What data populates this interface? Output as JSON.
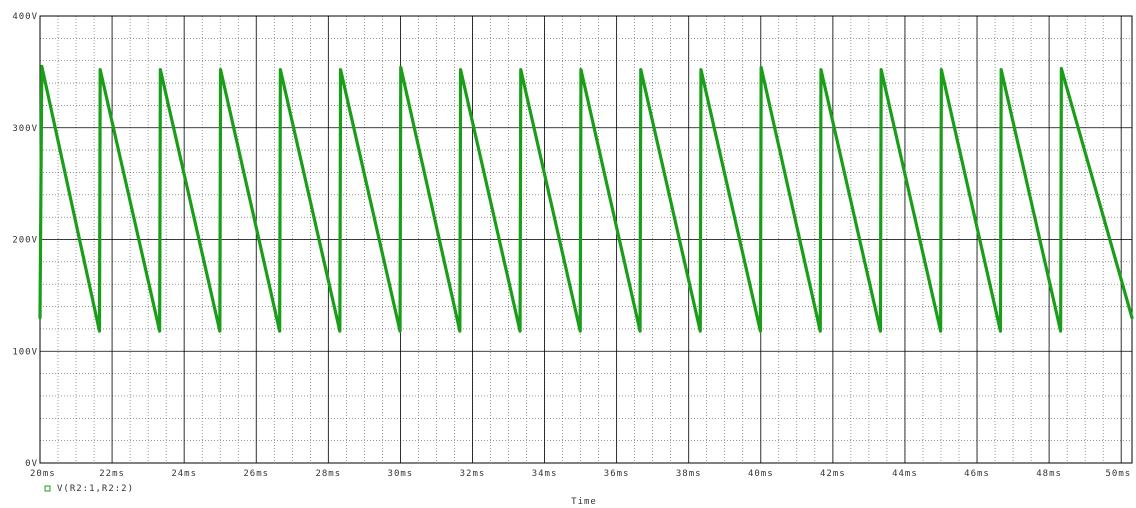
{
  "chart_data": {
    "type": "line",
    "title": "",
    "xlabel": "Time",
    "ylabel": "",
    "xlim": [
      20,
      50.3
    ],
    "ylim": [
      0,
      400
    ],
    "x_unit": "ms",
    "y_unit": "V",
    "x_ticks": [
      20,
      22,
      24,
      26,
      28,
      30,
      32,
      34,
      36,
      38,
      40,
      42,
      44,
      46,
      48,
      50
    ],
    "x_tick_labels": [
      "20ms",
      "22ms",
      "24ms",
      "26ms",
      "28ms",
      "30ms",
      "32ms",
      "34ms",
      "36ms",
      "38ms",
      "40ms",
      "42ms",
      "44ms",
      "46ms",
      "48ms",
      "50ms"
    ],
    "y_ticks": [
      0,
      100,
      200,
      300,
      400
    ],
    "y_tick_labels": [
      "0V",
      "100V",
      "200V",
      "300V",
      "400V"
    ],
    "grid": true,
    "legend_position": "bottom-left",
    "series": [
      {
        "name": "V(R2:1,R2:2)",
        "color": "#1a9e1a",
        "x": [
          20.0,
          20.05,
          21.65,
          21.67,
          23.32,
          23.34,
          24.99,
          25.01,
          26.65,
          26.67,
          28.32,
          28.34,
          29.99,
          30.01,
          31.65,
          31.67,
          33.32,
          33.34,
          34.99,
          35.01,
          36.65,
          36.67,
          38.32,
          38.34,
          39.99,
          40.01,
          41.65,
          41.67,
          43.32,
          43.34,
          44.99,
          45.01,
          46.65,
          46.67,
          48.32,
          48.34,
          50.3
        ],
        "y": [
          130,
          355,
          118,
          352,
          118,
          352,
          118,
          352,
          118,
          352,
          118,
          352,
          118,
          354,
          118,
          352,
          118,
          352,
          118,
          352,
          118,
          352,
          118,
          352,
          118,
          354,
          118,
          352,
          118,
          352,
          118,
          352,
          118,
          352,
          118,
          353,
          130
        ]
      }
    ]
  }
}
